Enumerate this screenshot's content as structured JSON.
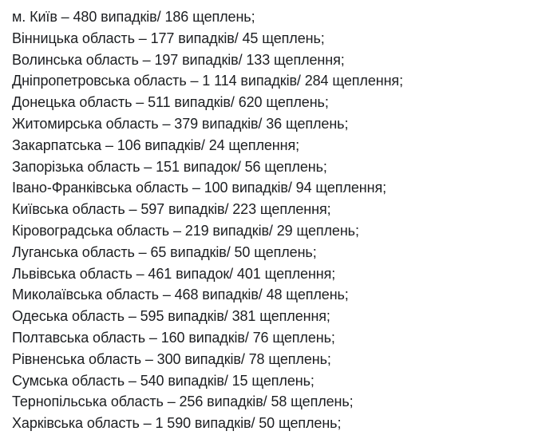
{
  "text_color": "#1c1e21",
  "lines": [
    "м. Київ – 480 випадків/ 186 щеплень;",
    "Вінницька область – 177 випадків/ 45 щеплень;",
    "Волинська область – 197 випадків/ 133 щеплення;",
    "Дніпропетровська область – 1 114 випадків/ 284 щеплення;",
    "Донецька область – 511 випадків/ 620 щеплень;",
    "Житомирська область – 379 випадків/ 36 щеплень;",
    "Закарпатська – 106 випадків/ 24 щеплення;",
    "Запорізька область – 151 випадок/ 56 щеплень;",
    "Івано-Франківська область – 100 випадків/ 94 щеплення;",
    "Київська область – 597 випадків/ 223 щеплення;",
    "Кіровоградська область – 219 випадків/ 29 щеплень;",
    "Луганська область – 65 випадків/ 50 щеплень;",
    "Львівська область – 461 випадок/ 401 щеплення;",
    "Миколаївська область – 468 випадків/ 48 щеплень;",
    "Одеська область – 595 випадків/ 381 щеплення;",
    "Полтавська область – 160 випадків/ 76 щеплень;",
    "Рівненська область – 300 випадків/ 78 щеплень;",
    "Сумська область – 540 випадків/ 15 щеплень;",
    "Тернопільська область – 256 випадків/ 58 щеплень;",
    "Харківська область – 1 590 випадків/ 50 щеплень;"
  ]
}
